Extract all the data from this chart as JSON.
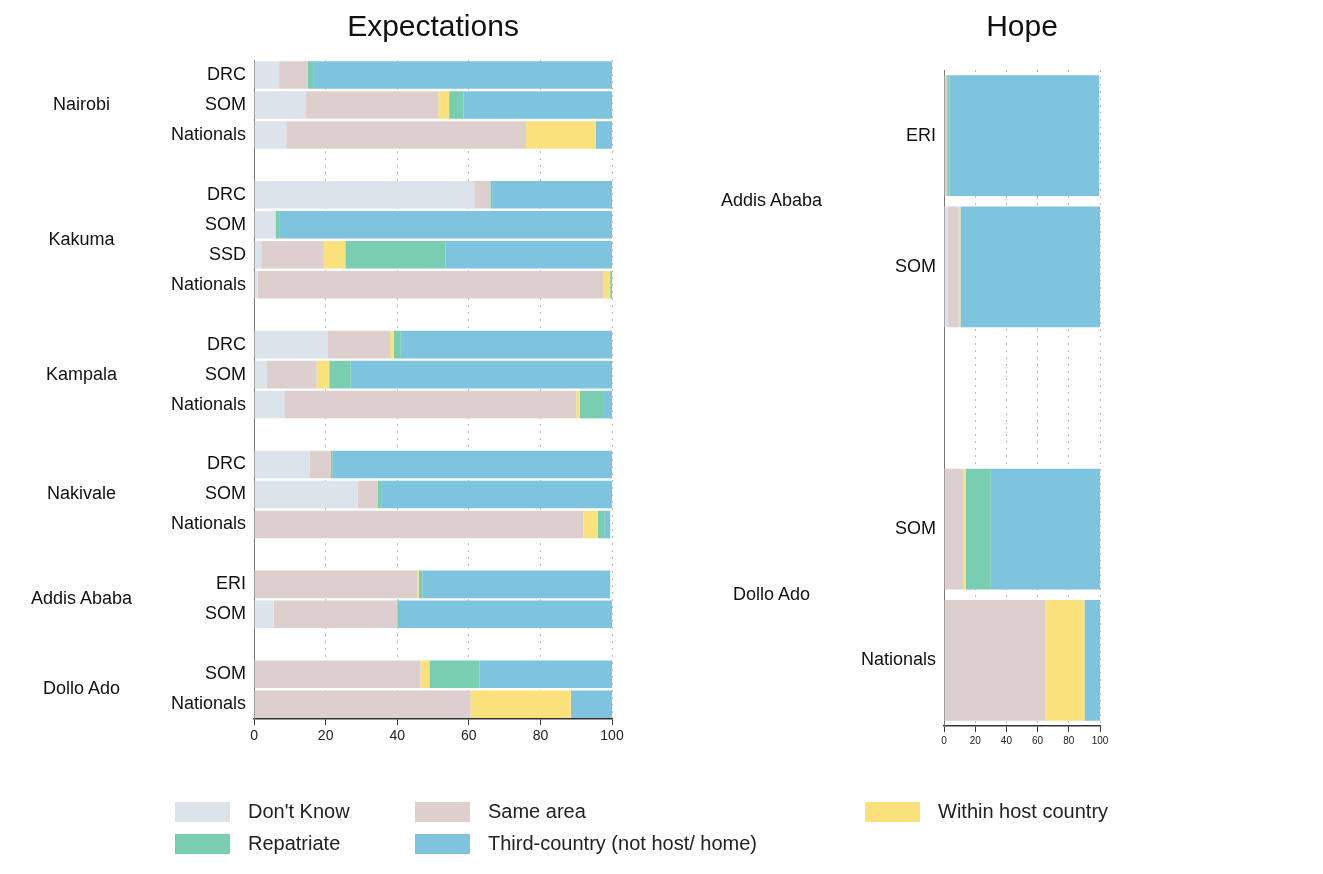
{
  "chart_data": [
    {
      "type": "bar",
      "orientation": "horizontal",
      "stacked": true,
      "title": "Expectations",
      "categories": [
        "DRC",
        "SOM",
        "Nationals",
        null,
        "DRC",
        "SOM",
        "SSD",
        "Nationals",
        null,
        "DRC",
        "SOM",
        "Nationals",
        null,
        "DRC",
        "SOM",
        "Nationals",
        null,
        "ERI",
        "SOM",
        null,
        "SOM",
        "Nationals"
      ],
      "annotations": [
        "Nairobi",
        "Kakuma",
        "Kampala",
        "Nakivale",
        "Addis Ababa",
        "Dollo Ado"
      ],
      "series": [
        {
          "name": "Don't Know",
          "color": "#dde3ea",
          "values": [
            7,
            14.5,
            9,
            null,
            61.5,
            6,
            2,
            1,
            null,
            20.5,
            3.5,
            8.5,
            null,
            15.5,
            29,
            null,
            null,
            null,
            5.5,
            null,
            0,
            0
          ]
        },
        {
          "name": "Same area",
          "color": "#dccfcd",
          "values": [
            8,
            37,
            67,
            null,
            4.5,
            0,
            17.5,
            96.5,
            null,
            17.5,
            14,
            81.5,
            null,
            6,
            5.5,
            92,
            null,
            45.5,
            34.5,
            null,
            46.5,
            60.5
          ]
        },
        {
          "name": "Within host country",
          "color": "#fbe17b",
          "values": [
            0,
            3,
            19.5,
            null,
            0,
            0,
            6,
            2,
            null,
            1,
            3.5,
            1,
            null,
            0,
            0,
            4,
            null,
            0.5,
            0,
            null,
            2.5,
            28
          ]
        },
        {
          "name": "Repatriate",
          "color": "#79cdb0",
          "values": [
            1.5,
            4,
            0,
            null,
            0.5,
            1,
            28,
            0.5,
            null,
            2,
            6,
            6.5,
            null,
            0.5,
            1,
            2,
            null,
            1,
            0.5,
            null,
            14,
            0
          ]
        },
        {
          "name": "Third-country (not host/ home)",
          "color": "#7ec4de",
          "values": [
            83.5,
            41.5,
            4.5,
            null,
            33.5,
            93,
            46.5,
            0,
            null,
            59,
            73,
            2.5,
            null,
            78,
            64.5,
            1.5,
            null,
            52.5,
            59.5,
            null,
            37,
            11.5
          ]
        }
      ],
      "xlim": [
        0,
        100
      ],
      "xticks": [
        0,
        20,
        40,
        60,
        80,
        100
      ],
      "grid": "x",
      "legend": "bottom"
    },
    {
      "type": "bar",
      "orientation": "horizontal",
      "stacked": true,
      "title": "Hope",
      "categories": [
        "ERI",
        "SOM",
        null,
        "SOM",
        "Nationals"
      ],
      "annotations": [
        "Addis Ababa",
        "Dollo Ado"
      ],
      "series": [
        {
          "color": "#dde3ea",
          "values": [
            null,
            2.5,
            null,
            0,
            0
          ]
        },
        {
          "color": "#dccfcd",
          "values": [
            2,
            7,
            null,
            12.5,
            65
          ]
        },
        {
          "color": "#fbe17b",
          "values": [
            0,
            1,
            null,
            1.5,
            25
          ]
        },
        {
          "color": "#79cdb0",
          "values": [
            1.5,
            0,
            null,
            16,
            0
          ]
        },
        {
          "color": "#7ec4de",
          "values": [
            96,
            89.5,
            null,
            70,
            10
          ]
        }
      ],
      "xlim": [
        0,
        100
      ],
      "xticks": [
        0,
        20,
        40,
        60,
        80,
        100
      ],
      "grid": "x"
    }
  ]
}
